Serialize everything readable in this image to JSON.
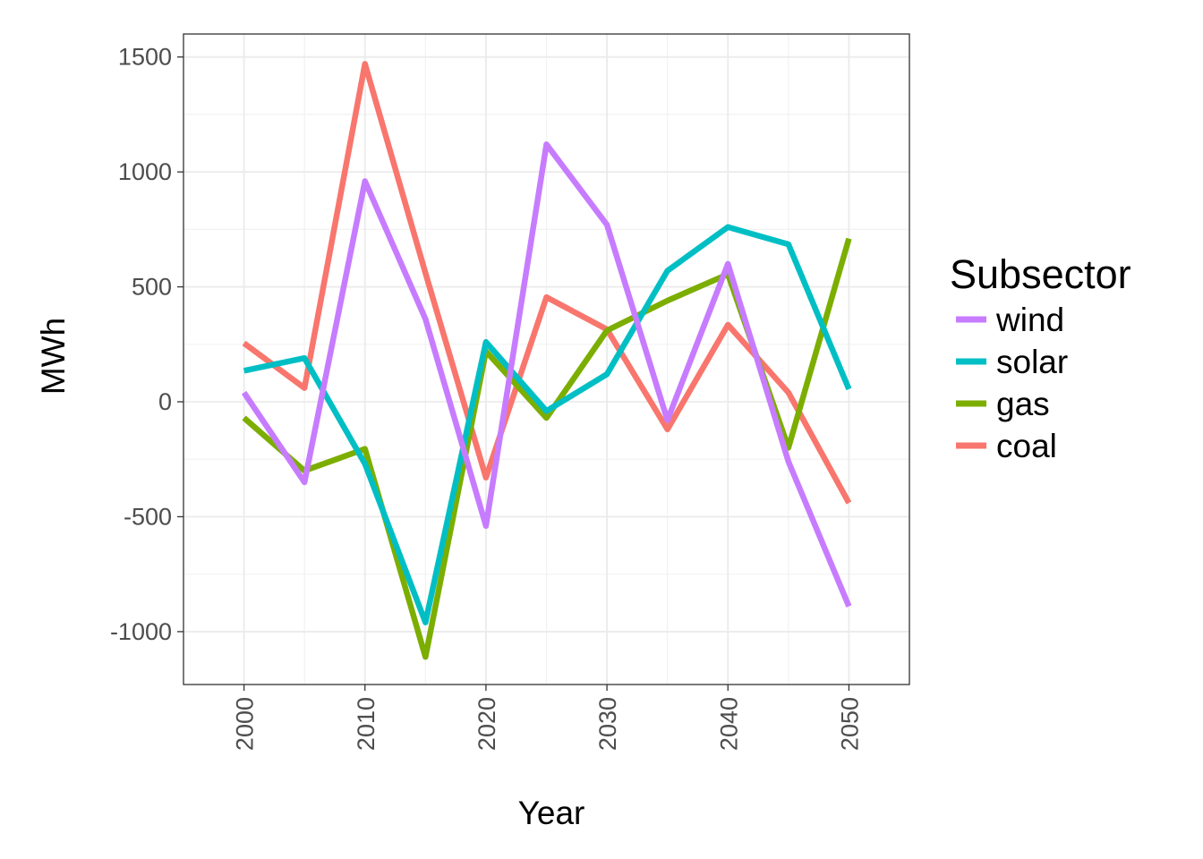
{
  "chart_data": {
    "type": "line",
    "xlabel": "Year",
    "ylabel": "MWh",
    "x": [
      2000,
      2005,
      2010,
      2015,
      2020,
      2025,
      2030,
      2035,
      2040,
      2045,
      2050
    ],
    "x_ticks": [
      "2000",
      "2010",
      "2020",
      "2030",
      "2040",
      "2050"
    ],
    "y_ticks": [
      "1500",
      "1000",
      "500",
      "0",
      "-500",
      "-1000"
    ],
    "xlim": [
      1995,
      2055
    ],
    "ylim": [
      -1230,
      1600
    ],
    "grid": true,
    "legend": {
      "title": "Subsector",
      "position": "right"
    },
    "series": [
      {
        "name": "wind",
        "color": "#C77CFF",
        "values": [
          40,
          -350,
          960,
          360,
          -540,
          1120,
          770,
          -80,
          600,
          -260,
          -890
        ]
      },
      {
        "name": "solar",
        "color": "#00BFC4",
        "values": [
          135,
          190,
          -270,
          -960,
          260,
          -40,
          120,
          570,
          760,
          685,
          55
        ]
      },
      {
        "name": "gas",
        "color": "#7CAE00",
        "values": [
          -70,
          -300,
          -205,
          -1110,
          220,
          -70,
          310,
          440,
          555,
          -200,
          710
        ]
      },
      {
        "name": "coal",
        "color": "#F8766D",
        "values": [
          255,
          60,
          1470,
          560,
          -330,
          455,
          315,
          -120,
          335,
          40,
          -440
        ]
      }
    ]
  }
}
